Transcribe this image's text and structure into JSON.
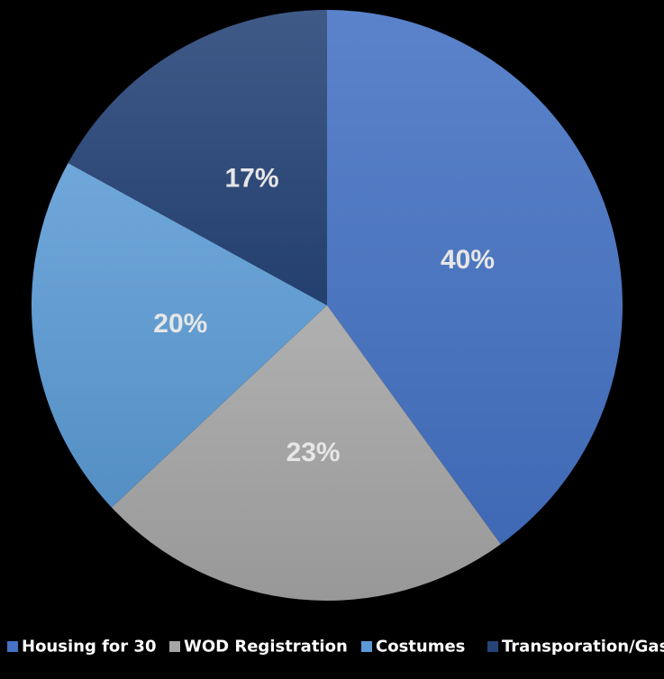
{
  "chart_data": {
    "type": "pie",
    "title": "",
    "start_angle_deg": 0,
    "direction": "clockwise",
    "legend_position": "bottom",
    "slices": [
      {
        "name": "Housing for 30",
        "value": 40,
        "label": "40%",
        "color": "#4472c4"
      },
      {
        "name": "WOD Registration",
        "value": 23,
        "label": "23%",
        "color": "#a5a5a5"
      },
      {
        "name": "Costumes",
        "value": 20,
        "label": "20%",
        "color": "#5b9bd5"
      },
      {
        "name": "Transporation/Gas",
        "value": 17,
        "label": "17%",
        "color": "#264478"
      }
    ]
  }
}
